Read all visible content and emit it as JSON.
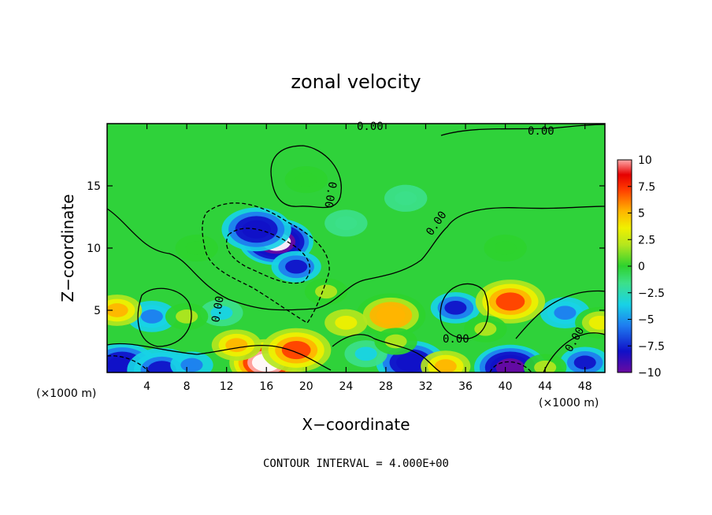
{
  "chart_data": {
    "type": "heatmap",
    "title": "zonal velocity",
    "xlabel": "X−coordinate",
    "ylabel": "Z−coordinate",
    "x_unit": "(×1000 m)",
    "y_unit": "(×1000 m)",
    "xlim": [
      0,
      50
    ],
    "ylim": [
      0,
      20
    ],
    "x_ticks": [
      "4",
      "8",
      "12",
      "16",
      "20",
      "24",
      "28",
      "32",
      "36",
      "40",
      "44",
      "48"
    ],
    "y_ticks": [
      "5",
      "10",
      "15"
    ],
    "colorbar": {
      "range": [
        -10,
        10
      ],
      "ticks": [
        "10",
        "7.5",
        "5",
        "2.5",
        "0",
        "−2.5",
        "−5",
        "−7.5",
        "−10"
      ]
    },
    "contour_labels": [
      "0.00",
      "0.00",
      "0.00",
      "0.00",
      "0.00",
      "0.00",
      "0.00"
    ],
    "footer": "CONTOUR INTERVAL = 4.000E+00",
    "features": [
      {
        "x": 17,
        "z": 10.5,
        "value": -12
      },
      {
        "x": 15,
        "z": 11.5,
        "value": -8
      },
      {
        "x": 19,
        "z": 8.5,
        "value": -6
      },
      {
        "x": 4.5,
        "z": 4.5,
        "value": -5
      },
      {
        "x": 11.5,
        "z": 4.8,
        "value": -2
      },
      {
        "x": 35,
        "z": 5.2,
        "value": -6
      },
      {
        "x": 30.5,
        "z": 0.8,
        "value": -8
      },
      {
        "x": 40.5,
        "z": 0.4,
        "value": -10
      },
      {
        "x": 46,
        "z": 4.8,
        "value": -5
      },
      {
        "x": 48,
        "z": 0.8,
        "value": -6
      },
      {
        "x": 1.5,
        "z": 0.6,
        "value": -8
      },
      {
        "x": 5.5,
        "z": 0.2,
        "value": -7
      },
      {
        "x": 8.5,
        "z": 0.6,
        "value": -4
      },
      {
        "x": 26,
        "z": 1.5,
        "value": -3
      },
      {
        "x": 16,
        "z": 0.8,
        "value": 12
      },
      {
        "x": 19,
        "z": 1.8,
        "value": 8
      },
      {
        "x": 13,
        "z": 2.2,
        "value": 6
      },
      {
        "x": 1,
        "z": 5,
        "value": 6
      },
      {
        "x": 28.5,
        "z": 4.6,
        "value": 7
      },
      {
        "x": 29,
        "z": 2.5,
        "value": 3
      },
      {
        "x": 40.5,
        "z": 5.7,
        "value": 8
      },
      {
        "x": 34,
        "z": 0.5,
        "value": 6
      },
      {
        "x": 24,
        "z": 4,
        "value": 4
      },
      {
        "x": 49.5,
        "z": 4,
        "value": 5
      },
      {
        "x": 44,
        "z": 0.4,
        "value": 3
      },
      {
        "x": 8,
        "z": 4.5,
        "value": 3
      },
      {
        "x": 22,
        "z": 6.5,
        "value": 2
      },
      {
        "x": 38,
        "z": 3.5,
        "value": 2
      },
      {
        "x": 20,
        "z": 15.5,
        "value": 1
      },
      {
        "x": 30,
        "z": 14,
        "value": -0.8
      },
      {
        "x": 24,
        "z": 12,
        "value": -0.5
      },
      {
        "x": 40,
        "z": 10,
        "value": 0.8
      },
      {
        "x": 9,
        "z": 10,
        "value": 0.6
      }
    ]
  }
}
